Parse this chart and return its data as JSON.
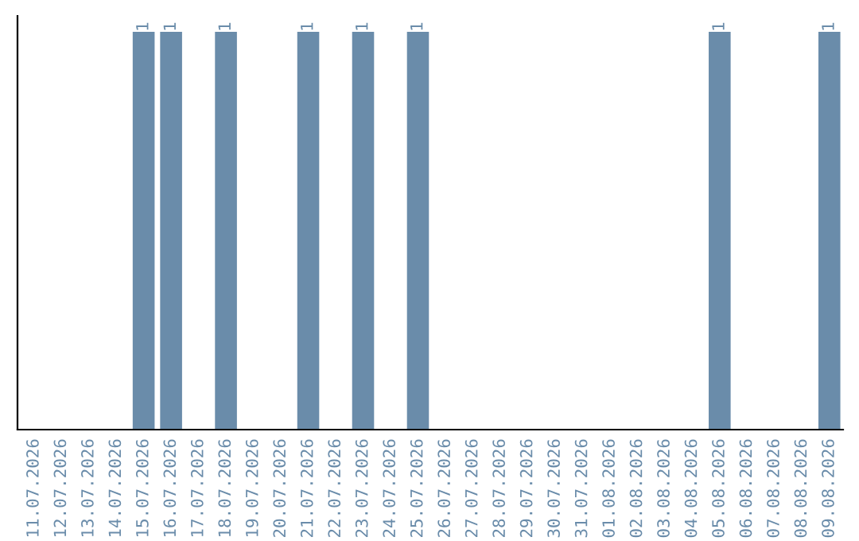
{
  "chart_data": {
    "type": "bar",
    "ylim": [
      0,
      1.04
    ],
    "tick_labels": "x",
    "color": "#6a8caa",
    "grid": false,
    "legend": false,
    "categories": [
      "11.07.2026",
      "12.07.2026",
      "13.07.2026",
      "14.07.2026",
      "15.07.2026",
      "16.07.2026",
      "17.07.2026",
      "18.07.2026",
      "19.07.2026",
      "20.07.2026",
      "21.07.2026",
      "22.07.2026",
      "23.07.2026",
      "24.07.2026",
      "25.07.2026",
      "26.07.2026",
      "27.07.2026",
      "28.07.2026",
      "29.07.2026",
      "30.07.2026",
      "31.07.2026",
      "01.08.2026",
      "02.08.2026",
      "03.08.2026",
      "04.08.2026",
      "05.08.2026",
      "06.08.2026",
      "07.08.2026",
      "08.08.2026",
      "09.08.2026"
    ],
    "values": [
      0,
      0,
      0,
      0,
      1,
      1,
      0,
      1,
      0,
      0,
      1,
      0,
      1,
      0,
      1,
      0,
      0,
      0,
      0,
      0,
      0,
      0,
      0,
      0,
      0,
      1,
      0,
      0,
      0,
      1
    ],
    "value_labels": [
      null,
      null,
      null,
      null,
      "1",
      "1",
      null,
      "1",
      null,
      null,
      "1",
      null,
      "1",
      null,
      "1",
      null,
      null,
      null,
      null,
      null,
      null,
      null,
      null,
      null,
      null,
      "1",
      null,
      null,
      null,
      "1"
    ]
  }
}
